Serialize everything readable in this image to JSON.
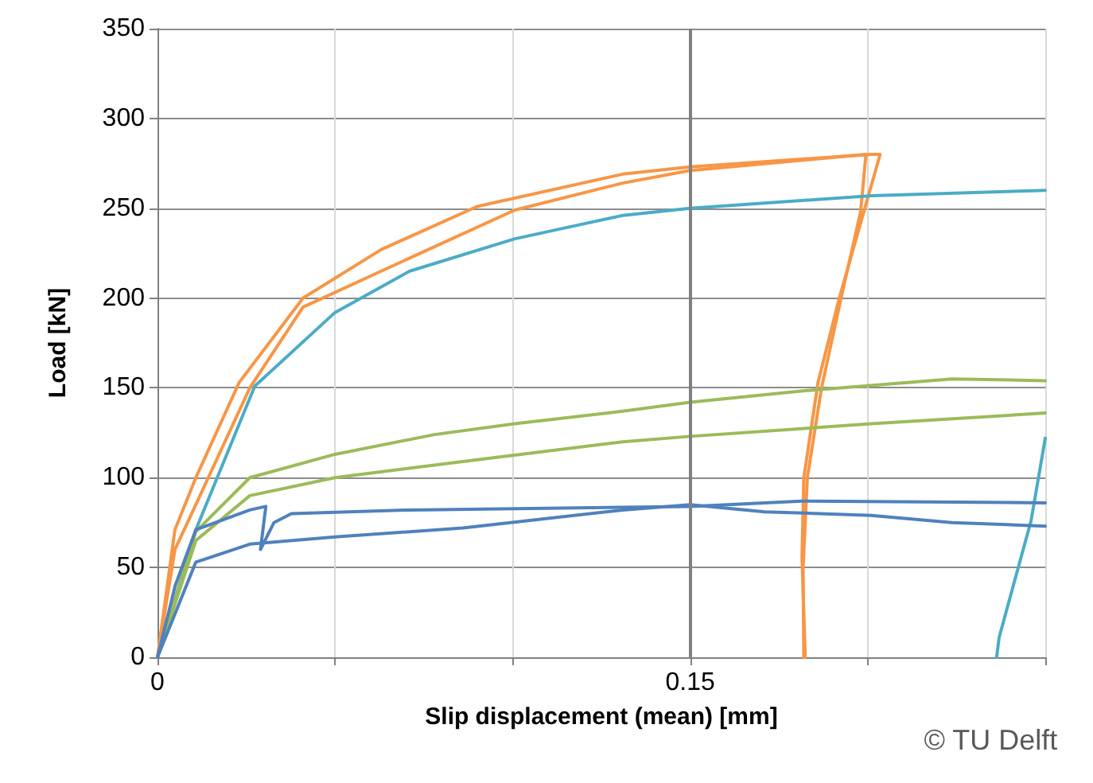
{
  "chart_data": {
    "type": "line",
    "xlabel": "Slip displacement (mean) [mm]",
    "ylabel": "Load [kN]",
    "xlim": [
      0,
      0.25
    ],
    "xticks": [
      0,
      {
        "value": 0.05,
        "label": null
      },
      {
        "value": 0.1,
        "label": null
      },
      0.15,
      {
        "value": 0.2,
        "label": null
      },
      {
        "value": 0.25,
        "label": null
      }
    ],
    "ylim": [
      0,
      350
    ],
    "yticks": [
      0,
      50,
      100,
      150,
      200,
      250,
      300,
      350
    ],
    "grid": true,
    "marker": "none",
    "line_style": "solid",
    "ref_lines": [
      {
        "axis": "x",
        "value": 0.15,
        "color": "#808080"
      }
    ],
    "annotations": [
      "© TU Delft"
    ],
    "series": [
      {
        "color": "#f79646",
        "x": [
          0,
          0.0049,
          0.0108,
          0.023,
          0.041,
          0.063,
          0.09,
          0.131,
          0.15,
          0.201,
          0.2035,
          0.192,
          0.186,
          0.182,
          0.1815,
          0.1824
        ],
        "values": [
          0,
          71,
          100,
          153,
          200,
          227,
          251,
          269,
          273,
          280,
          280,
          200,
          153,
          100,
          56,
          0
        ]
      },
      {
        "color": "#f79646",
        "x": [
          0,
          0.0049,
          0.0108,
          0.026,
          0.041,
          0.063,
          0.1006,
          0.131,
          0.15,
          0.1995,
          0.198,
          0.1925,
          0.187,
          0.183,
          0.1818,
          0.182
        ],
        "values": [
          0,
          60,
          85,
          150,
          195,
          215,
          249,
          264,
          271,
          280,
          248,
          200,
          150,
          100,
          50,
          0
        ]
      },
      {
        "color": "#4bacc6",
        "x": [
          0,
          0.0108,
          0.0274,
          0.05,
          0.071,
          0.1006,
          0.131,
          0.15,
          0.201,
          0.25
        ],
        "values": [
          0,
          71,
          151,
          192,
          215,
          233,
          246,
          250,
          257,
          260
        ]
      },
      {
        "color": "#4bacc6",
        "x": [
          0.2363,
          0.237,
          0.246,
          0.25
        ],
        "values": [
          0,
          11,
          76,
          122
        ]
      },
      {
        "color": "#9bbb59",
        "x": [
          0,
          0.0108,
          0.026,
          0.05,
          0.078,
          0.1006,
          0.131,
          0.15,
          0.18,
          0.2237,
          0.25
        ],
        "values": [
          0,
          70,
          100,
          113,
          124,
          130,
          137,
          142,
          148,
          155,
          154
        ]
      },
      {
        "color": "#9bbb59",
        "x": [
          0,
          0.0108,
          0.026,
          0.05,
          0.086,
          0.131,
          0.15,
          0.201,
          0.25
        ],
        "values": [
          0,
          65,
          90,
          100,
          109,
          120,
          123,
          130,
          136
        ]
      },
      {
        "color": "#4f81bd",
        "x": [
          0,
          0.005,
          0.0108,
          0.026,
          0.0305,
          0.029,
          0.0328,
          0.0377,
          0.071,
          0.15,
          0.1815,
          0.25
        ],
        "values": [
          0,
          40,
          71,
          82,
          84,
          60,
          75,
          80,
          82,
          84,
          87,
          86
        ]
      },
      {
        "color": "#4f81bd",
        "x": [
          0,
          0.0108,
          0.026,
          0.05,
          0.086,
          0.131,
          0.15,
          0.171,
          0.201,
          0.2237,
          0.25
        ],
        "values": [
          0,
          53,
          63,
          67,
          72,
          82,
          85,
          81,
          79,
          75,
          73
        ]
      }
    ]
  }
}
